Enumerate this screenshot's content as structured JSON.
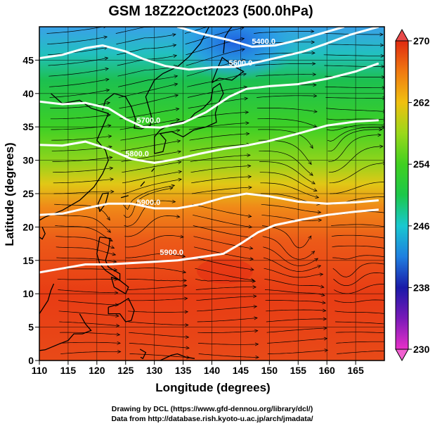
{
  "title": "GSM 18Z22Oct2023 (500.0hPa)",
  "x_axis": {
    "label": "Longitude (degrees)",
    "range": [
      110,
      170
    ],
    "ticks": [
      "110",
      "115",
      "120",
      "125",
      "130",
      "135",
      "140",
      "145",
      "150",
      "155",
      "160",
      "165"
    ]
  },
  "y_axis": {
    "label": "Latitude  (degrees)",
    "range": [
      0,
      50
    ],
    "ticks": [
      "0",
      "5",
      "10",
      "15",
      "20",
      "25",
      "30",
      "35",
      "40",
      "45"
    ]
  },
  "colorbar": {
    "range": [
      230,
      270
    ],
    "ticks": [
      "230",
      "238",
      "246",
      "254",
      "262",
      "270"
    ],
    "colors": [
      "#e830c8",
      "#7a1ab8",
      "#1a1aa8",
      "#1f7fe0",
      "#19c8d0",
      "#1cc84a",
      "#40d020",
      "#9ad81a",
      "#f0c010",
      "#f07a10",
      "#e02a10"
    ]
  },
  "contours": [
    {
      "label": "5400.0"
    },
    {
      "label": "5600.0"
    },
    {
      "label": "5700.0"
    },
    {
      "label": "5800.0"
    },
    {
      "label": "5900.0"
    },
    {
      "label": "5900.0"
    }
  ],
  "credits": {
    "line1": "Drawing by DCL (https://www.gfd-dennou.org/library/dcl/)",
    "line2": "Data from http://database.rish.kyoto-u.ac.jp/arch/jmadata/"
  }
}
